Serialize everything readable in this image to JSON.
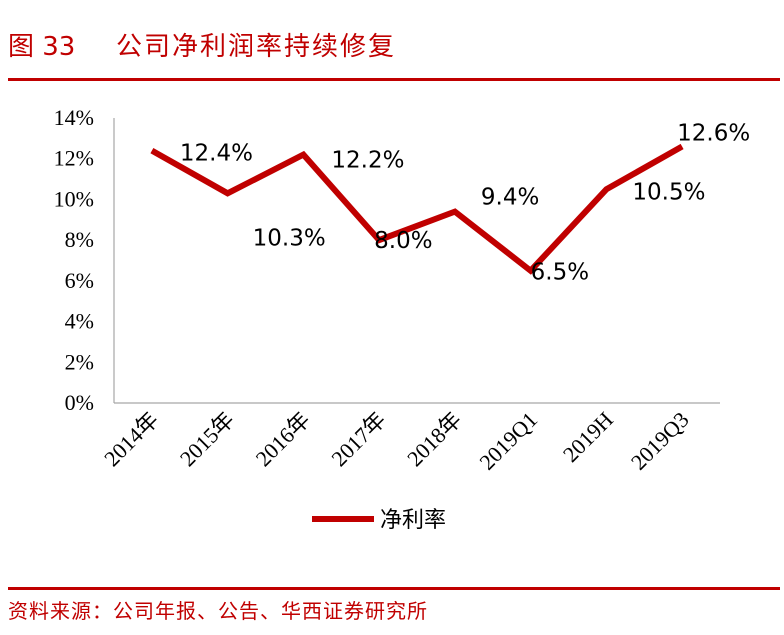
{
  "header": {
    "figure_number": "图 33",
    "title": "公司净利润率持续修复"
  },
  "footer": {
    "source": "资料来源：公司年报、公告、华西证券研究所"
  },
  "chart_data": {
    "type": "line",
    "categories": [
      "2014年",
      "2015年",
      "2016年",
      "2017年",
      "2018年",
      "2019Q1",
      "2019H",
      "2019Q3"
    ],
    "series": [
      {
        "name": "净利率",
        "values": [
          12.4,
          10.3,
          12.2,
          8.0,
          9.4,
          6.5,
          10.5,
          12.6
        ],
        "labels": [
          "12.4%",
          "10.3%",
          "12.2%",
          "8.0%",
          "9.4%",
          "6.5%",
          "10.5%",
          "12.6%"
        ],
        "color": "#c00000"
      }
    ],
    "yticks": [
      "0%",
      "2%",
      "4%",
      "6%",
      "8%",
      "10%",
      "12%",
      "14%"
    ],
    "ylim": [
      0,
      14
    ],
    "legend": "bottom",
    "grid": false
  }
}
